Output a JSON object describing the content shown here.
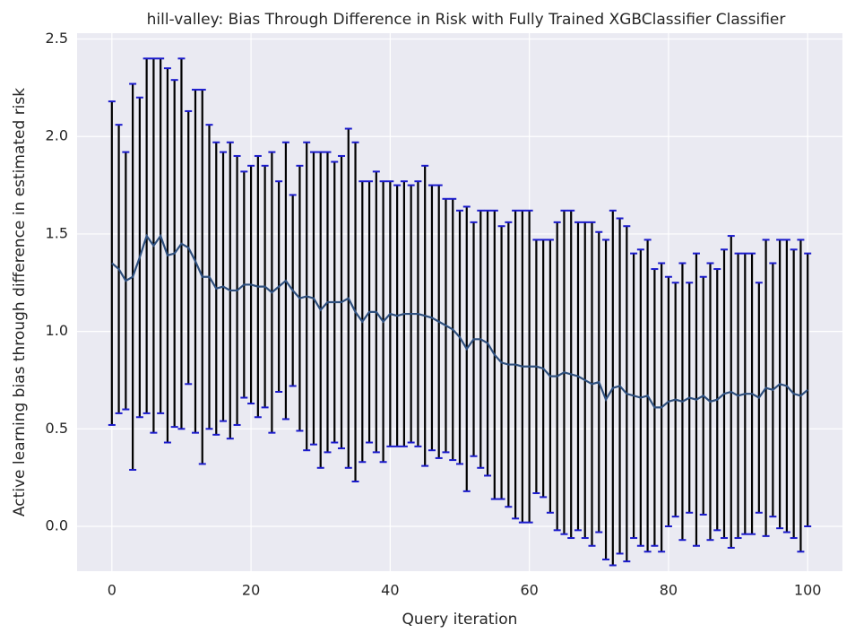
{
  "chart_data": {
    "type": "errorbar",
    "title": "hill-valley: Bias Through Difference in Risk with Fully Trained XGBClassifier Classifier",
    "xlabel": "Query iteration",
    "ylabel": "Active learning bias through difference in estimated risk",
    "x": [
      0,
      1,
      2,
      3,
      4,
      5,
      6,
      7,
      8,
      9,
      10,
      11,
      12,
      13,
      14,
      15,
      16,
      17,
      18,
      19,
      20,
      21,
      22,
      23,
      24,
      25,
      26,
      27,
      28,
      29,
      30,
      31,
      32,
      33,
      34,
      35,
      36,
      37,
      38,
      39,
      40,
      41,
      42,
      43,
      44,
      45,
      46,
      47,
      48,
      49,
      50,
      51,
      52,
      53,
      54,
      55,
      56,
      57,
      58,
      59,
      60,
      61,
      62,
      63,
      64,
      65,
      66,
      67,
      68,
      69,
      70,
      71,
      72,
      73,
      74,
      75,
      76,
      77,
      78,
      79,
      80,
      81,
      82,
      83,
      84,
      85,
      86,
      87,
      88,
      89,
      90,
      91,
      92,
      93,
      94,
      95,
      96,
      97,
      98,
      99,
      100
    ],
    "series": [
      {
        "color": "#2e4f7e",
        "ecolor": "#000000",
        "capcolor": "#1a1acc",
        "values": [
          1.35,
          1.32,
          1.26,
          1.28,
          1.38,
          1.49,
          1.44,
          1.49,
          1.39,
          1.4,
          1.45,
          1.43,
          1.36,
          1.28,
          1.28,
          1.22,
          1.23,
          1.21,
          1.21,
          1.24,
          1.24,
          1.23,
          1.23,
          1.2,
          1.23,
          1.26,
          1.21,
          1.17,
          1.18,
          1.17,
          1.11,
          1.15,
          1.15,
          1.15,
          1.17,
          1.1,
          1.05,
          1.1,
          1.1,
          1.05,
          1.09,
          1.08,
          1.09,
          1.09,
          1.09,
          1.08,
          1.07,
          1.05,
          1.03,
          1.01,
          0.97,
          0.91,
          0.96,
          0.96,
          0.94,
          0.88,
          0.84,
          0.83,
          0.83,
          0.82,
          0.82,
          0.82,
          0.81,
          0.77,
          0.77,
          0.79,
          0.78,
          0.77,
          0.75,
          0.73,
          0.74,
          0.65,
          0.71,
          0.72,
          0.68,
          0.67,
          0.66,
          0.67,
          0.61,
          0.61,
          0.64,
          0.65,
          0.64,
          0.66,
          0.65,
          0.67,
          0.64,
          0.65,
          0.68,
          0.69,
          0.67,
          0.68,
          0.68,
          0.66,
          0.71,
          0.7,
          0.73,
          0.72,
          0.68,
          0.67,
          0.7
        ],
        "errors": [
          0.83,
          0.74,
          0.66,
          0.99,
          0.82,
          0.91,
          0.96,
          0.91,
          0.96,
          0.89,
          0.95,
          0.7,
          0.88,
          0.96,
          0.78,
          0.75,
          0.69,
          0.76,
          0.69,
          0.58,
          0.61,
          0.67,
          0.62,
          0.72,
          0.54,
          0.71,
          0.49,
          0.68,
          0.79,
          0.75,
          0.81,
          0.77,
          0.72,
          0.75,
          0.87,
          0.87,
          0.72,
          0.67,
          0.72,
          0.72,
          0.68,
          0.67,
          0.68,
          0.66,
          0.68,
          0.77,
          0.68,
          0.7,
          0.65,
          0.67,
          0.65,
          0.73,
          0.6,
          0.66,
          0.68,
          0.74,
          0.7,
          0.73,
          0.79,
          0.8,
          0.8,
          0.65,
          0.66,
          0.7,
          0.79,
          0.83,
          0.84,
          0.79,
          0.81,
          0.83,
          0.77,
          0.82,
          0.91,
          0.86,
          0.86,
          0.73,
          0.76,
          0.8,
          0.71,
          0.74,
          0.64,
          0.6,
          0.71,
          0.59,
          0.75,
          0.61,
          0.71,
          0.67,
          0.74,
          0.8,
          0.73,
          0.72,
          0.72,
          0.59,
          0.76,
          0.65,
          0.74,
          0.75,
          0.74,
          0.8,
          0.7
        ]
      }
    ],
    "xlim": [
      -5,
      105
    ],
    "ylim": [
      -0.23,
      2.53
    ],
    "xticks": [
      0,
      20,
      40,
      60,
      80,
      100
    ],
    "yticks": [
      {
        "value": 0,
        "label": "0.0"
      },
      0.5,
      {
        "value": 1,
        "label": "1.0"
      },
      1.5,
      {
        "value": 2,
        "label": "2.0"
      },
      2.5
    ],
    "grid": true
  }
}
